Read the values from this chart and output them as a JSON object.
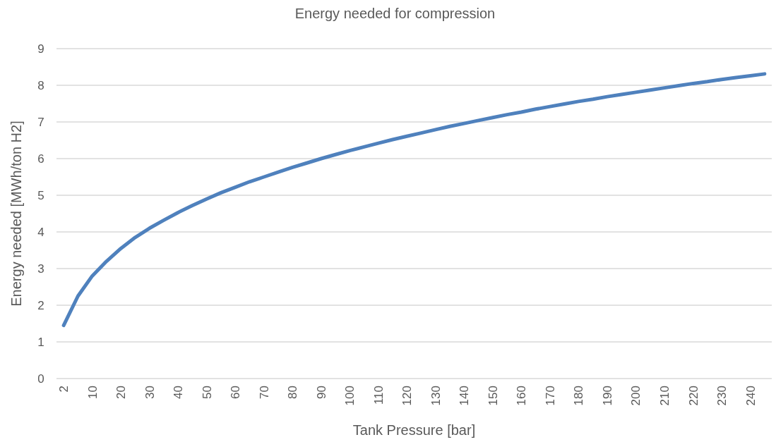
{
  "chart_data": {
    "type": "line",
    "title": "Energy needed for compression",
    "xlabel": "Tank Pressure [bar]",
    "ylabel": "Energy needed [MWh/ton H2]",
    "categories": [
      "2",
      null,
      "10",
      null,
      "20",
      null,
      "30",
      null,
      "40",
      null,
      "50",
      null,
      "60",
      null,
      "70",
      null,
      "80",
      null,
      "90",
      null,
      "100",
      null,
      "110",
      null,
      "120",
      null,
      "130",
      null,
      "140",
      null,
      "150",
      null,
      "160",
      null,
      "170",
      null,
      "180",
      null,
      "190",
      null,
      "200",
      null,
      "210",
      null,
      "220",
      null,
      "230",
      null,
      "240",
      null
    ],
    "series": [
      {
        "color": "#4f81bd",
        "values": [
          1.45,
          2.25,
          2.8,
          3.2,
          3.55,
          3.85,
          4.1,
          4.32,
          4.53,
          4.72,
          4.9,
          5.07,
          5.22,
          5.37,
          5.5,
          5.63,
          5.76,
          5.88,
          6.0,
          6.11,
          6.22,
          6.32,
          6.42,
          6.52,
          6.61,
          6.7,
          6.79,
          6.88,
          6.96,
          7.04,
          7.12,
          7.2,
          7.27,
          7.35,
          7.42,
          7.49,
          7.56,
          7.62,
          7.69,
          7.75,
          7.81,
          7.87,
          7.93,
          7.99,
          8.05,
          8.1,
          8.16,
          8.21,
          8.26,
          8.31
        ]
      }
    ],
    "ylim": [
      0,
      9
    ],
    "yticks": [
      0,
      1,
      2,
      3,
      4,
      5,
      6,
      7,
      8,
      9
    ],
    "grid": "y",
    "marker": "none",
    "line_style": "solid"
  }
}
